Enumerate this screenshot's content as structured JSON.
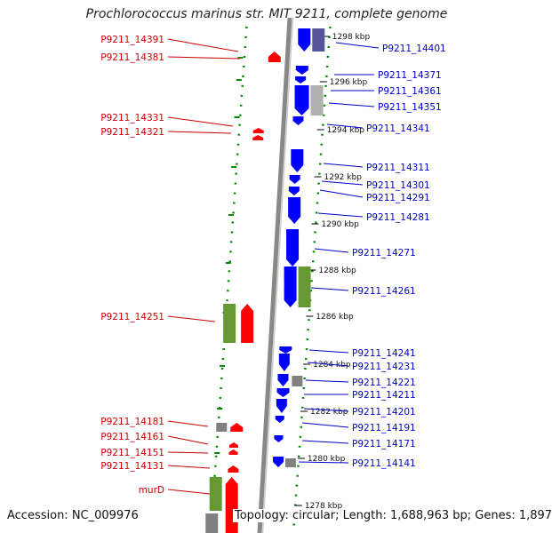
{
  "title": "Prochlorococcus marinus str. MIT 9211, complete genome",
  "footer": {
    "accession": "Accession: NC_009976",
    "summary": "Topology: circular; Length: 1,688,963 bp; Genes: 1,897"
  },
  "colors": {
    "forward_cds": "#ff0000",
    "reverse_cds": "#0000ff",
    "forward_label": "#cc0000",
    "reverse_label": "#0000cc",
    "rna": "#669933",
    "grey_feature": "#808080",
    "tick": "#008800",
    "backbone": "#888888"
  },
  "kbp_ticks": [
    "1298 kbp",
    "1296 kbp",
    "1294 kbp",
    "1292 kbp",
    "1290 kbp",
    "1288 kbp",
    "1286 kbp",
    "1284 kbp",
    "1282 kbp",
    "1280 kbp",
    "1278 kbp"
  ],
  "left_labels": [
    "P9211_14391",
    "P9211_14381",
    "P9211_14331",
    "P9211_14321",
    "P9211_14251",
    "P9211_14181",
    "P9211_14161",
    "P9211_14151",
    "P9211_14131",
    "murD"
  ],
  "right_labels": [
    "P9211_14401",
    "P9211_14371",
    "P9211_14361",
    "P9211_14351",
    "P9211_14341",
    "P9211_14311",
    "P9211_14301",
    "P9211_14291",
    "P9211_14281",
    "P9211_14271",
    "P9211_14261",
    "P9211_14241",
    "P9211_14231",
    "P9211_14221",
    "P9211_14211",
    "P9211_14201",
    "P9211_14191",
    "P9211_14171",
    "P9211_14141"
  ]
}
